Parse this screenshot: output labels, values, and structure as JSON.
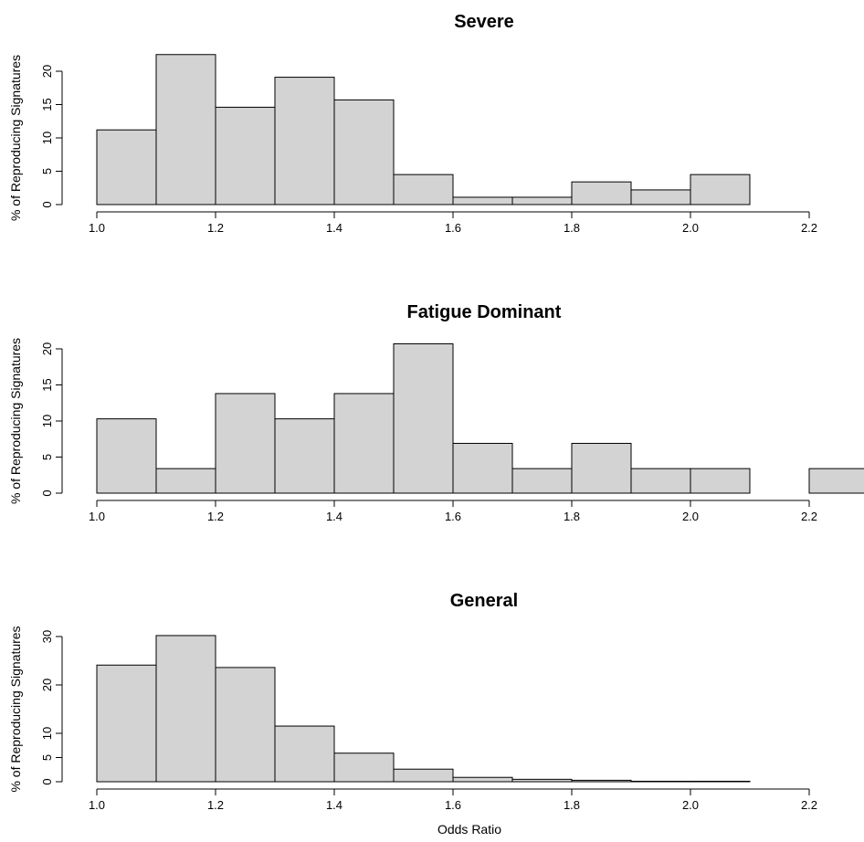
{
  "chart_data": [
    {
      "type": "histogram",
      "title": "Severe",
      "ylabel": "% of Reproducing Signatures",
      "xlabel": "",
      "bin_edges": [
        1.0,
        1.1,
        1.2,
        1.3,
        1.4,
        1.5,
        1.6,
        1.7,
        1.8,
        1.9,
        2.0,
        2.1
      ],
      "values": [
        11.2,
        22.5,
        14.6,
        19.1,
        15.7,
        4.5,
        1.1,
        1.1,
        3.4,
        2.2,
        4.5
      ],
      "xticks": [
        "1.0",
        "1.2",
        "1.4",
        "1.6",
        "1.8",
        "2.0",
        "2.2"
      ],
      "yticks": [
        "0",
        "5",
        "10",
        "15",
        "20"
      ],
      "xlim": [
        1.0,
        2.2
      ],
      "ytick_values": [
        0,
        5,
        10,
        15,
        20
      ],
      "grid": false
    },
    {
      "type": "histogram",
      "title": "Fatigue Dominant",
      "ylabel": "% of Reproducing Signatures",
      "xlabel": "",
      "bin_edges": [
        1.0,
        1.1,
        1.2,
        1.3,
        1.4,
        1.5,
        1.6,
        1.7,
        1.8,
        1.9,
        2.0,
        2.1,
        2.2,
        2.3
      ],
      "values": [
        10.3,
        3.4,
        13.8,
        10.3,
        13.8,
        20.7,
        6.9,
        3.4,
        6.9,
        3.4,
        3.4,
        0,
        3.4
      ],
      "xticks": [
        "1.0",
        "1.2",
        "1.4",
        "1.6",
        "1.8",
        "2.0",
        "2.2"
      ],
      "yticks": [
        "0",
        "5",
        "10",
        "15",
        "20"
      ],
      "xlim": [
        1.0,
        2.2
      ],
      "ytick_values": [
        0,
        5,
        10,
        15,
        20
      ],
      "grid": false
    },
    {
      "type": "histogram",
      "title": "General",
      "ylabel": "% of Reproducing Signatures",
      "xlabel": "Odds Ratio",
      "bin_edges": [
        1.0,
        1.1,
        1.2,
        1.3,
        1.4,
        1.5,
        1.6,
        1.7,
        1.8,
        1.9,
        2.0,
        2.1
      ],
      "values": [
        24.1,
        30.2,
        23.6,
        11.5,
        5.9,
        2.6,
        0.9,
        0.5,
        0.3,
        0.1,
        0.1
      ],
      "xticks": [
        "1.0",
        "1.2",
        "1.4",
        "1.6",
        "1.8",
        "2.0",
        "2.2"
      ],
      "yticks": [
        "0",
        "5",
        "10",
        "20",
        "30"
      ],
      "xlim": [
        1.0,
        2.2
      ],
      "ytick_values": [
        0,
        5,
        10,
        20,
        30
      ],
      "grid": false
    }
  ]
}
